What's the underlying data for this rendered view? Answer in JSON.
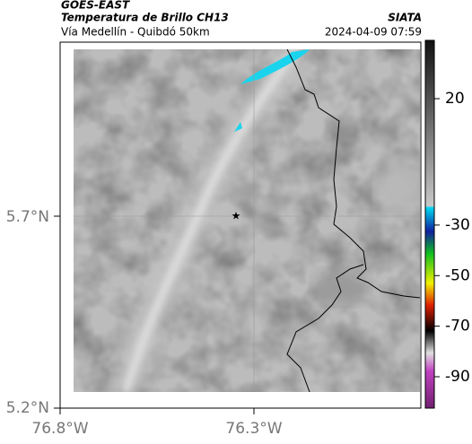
{
  "header": {
    "title": "GOES-EAST",
    "subtitle": "Temperatura de Brillo CH13",
    "source": "SIATA",
    "region": "Vía Medellín - Quibdó 50km",
    "timestamp": "2024-04-09 07:59"
  },
  "map": {
    "lat_ticks": [
      "5.7°N",
      "5.2°N"
    ],
    "lon_ticks": [
      "76.8°W",
      "76.3°W"
    ]
  },
  "colorbar": {
    "ticks": [
      20,
      -30,
      -50,
      -70,
      -90
    ]
  }
}
